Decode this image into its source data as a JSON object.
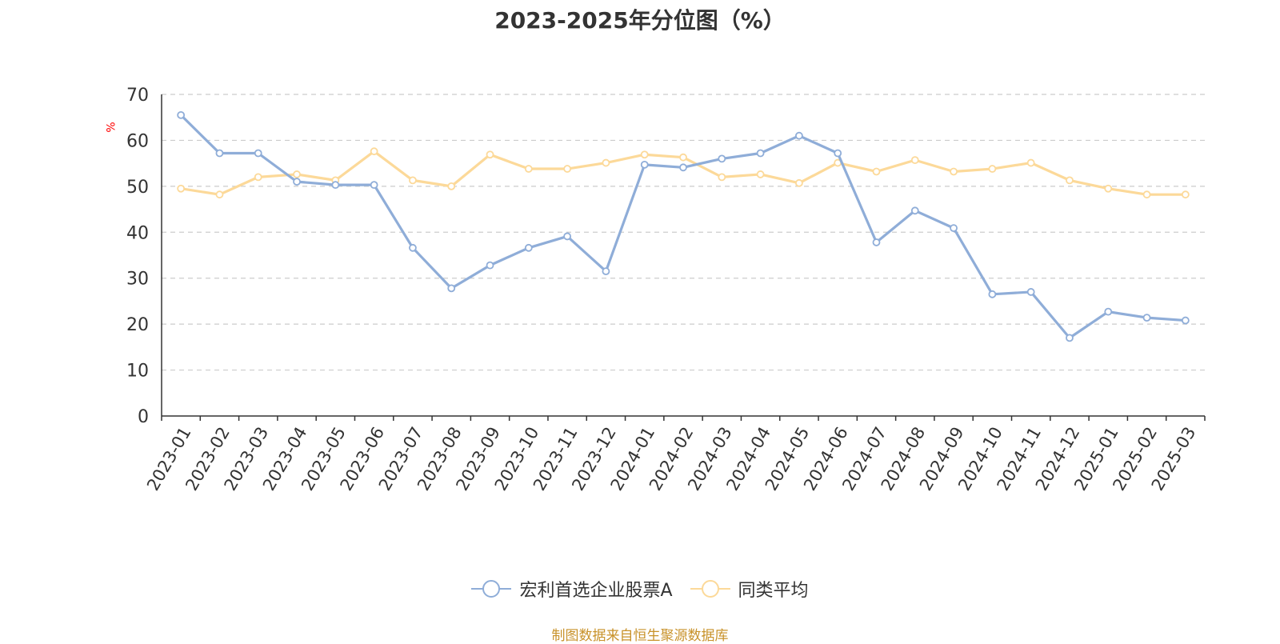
{
  "title": "2023-2025年分位图（%）",
  "source": "制图数据来自恒生聚源数据库",
  "colors": {
    "series1": "#8fadd8",
    "series2": "#fcd999",
    "grid": "#cccccc",
    "axis": "#333333",
    "ylabel": "#ff0000",
    "source": "#c8922a"
  },
  "chart_data": {
    "type": "line",
    "title": "2023-2025年分位图（%）",
    "ylabel": "%",
    "xlabel": "",
    "ylim": [
      0,
      70
    ],
    "yticks": [
      0,
      10,
      20,
      30,
      40,
      50,
      60,
      70
    ],
    "grid": true,
    "legend_position": "bottom",
    "categories": [
      "2023-01",
      "2023-02",
      "2023-03",
      "2023-04",
      "2023-05",
      "2023-06",
      "2023-07",
      "2023-08",
      "2023-09",
      "2023-10",
      "2023-11",
      "2023-12",
      "2024-01",
      "2024-02",
      "2024-03",
      "2024-04",
      "2024-05",
      "2024-06",
      "2024-07",
      "2024-08",
      "2024-09",
      "2024-10",
      "2024-11",
      "2024-12",
      "2025-01",
      "2025-02",
      "2025-03"
    ],
    "series": [
      {
        "name": "宏利首选企业股票A",
        "color": "#8fadd8",
        "values": [
          65.5,
          57.2,
          57.2,
          51.0,
          50.3,
          50.3,
          36.6,
          27.8,
          32.8,
          36.6,
          39.1,
          31.5,
          54.7,
          54.1,
          56.0,
          57.2,
          61.0,
          57.2,
          37.8,
          44.7,
          40.9,
          26.5,
          27.0,
          17.0,
          22.7,
          21.4,
          20.8
        ]
      },
      {
        "name": "同类平均",
        "color": "#fcd999",
        "values": [
          49.5,
          48.2,
          52.0,
          52.6,
          51.3,
          57.6,
          51.3,
          50.0,
          56.9,
          53.8,
          53.8,
          55.1,
          56.9,
          56.3,
          52.0,
          52.6,
          50.7,
          55.1,
          53.2,
          55.7,
          53.2,
          53.8,
          55.1,
          51.3,
          49.5,
          48.2,
          48.2
        ]
      }
    ]
  }
}
